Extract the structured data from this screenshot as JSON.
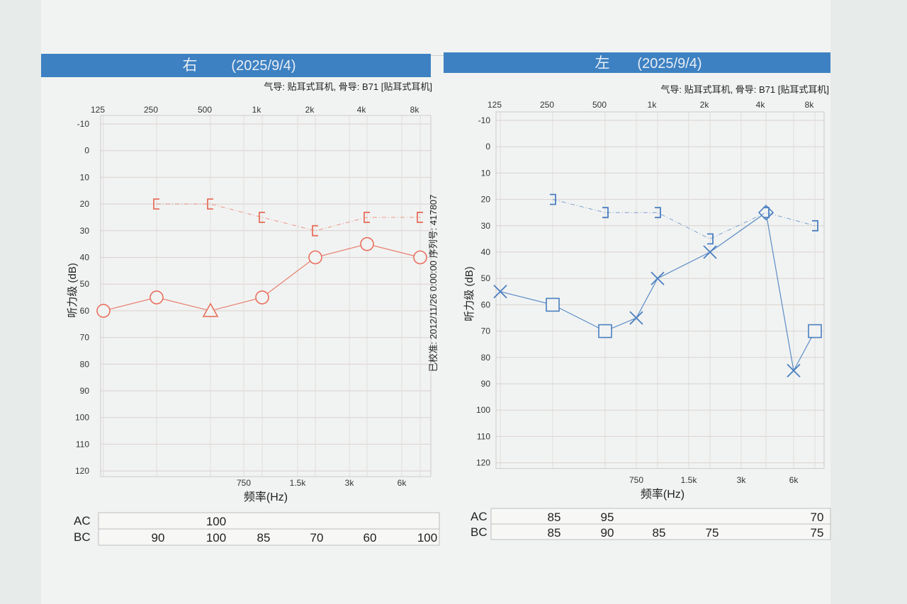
{
  "charts": [
    {
      "header_label": "右",
      "header_date": "(2025/9/4)",
      "transducer": "气导: 贴耳式耳机, 骨导: B71 [贴耳式耳机]",
      "ylabel": "听力级 (dB)",
      "xlabel": "频率(Hz)",
      "color": "#e8705e"
    },
    {
      "header_label": "左",
      "header_date": "(2025/9/4)",
      "transducer": "气导: 贴耳式耳机, 骨导: B71 [贴耳式耳机]",
      "ylabel": "听力级 (dB)",
      "xlabel": "频率(Hz)",
      "color": "#4a7fc0"
    }
  ],
  "calibration_note": "已校准: 2012/11/26 0:00:00 序列号: 417807",
  "chart_data": [
    {
      "type": "line",
      "ear": "右",
      "color": "#e8705e",
      "top_ticks": [
        "125",
        "250",
        "500",
        "1k",
        "2k",
        "4k",
        "8k"
      ],
      "bottom_ticks": [
        "750",
        "1.5k",
        "3k",
        "6k"
      ],
      "y_ticks": [
        -10,
        0,
        10,
        20,
        30,
        40,
        50,
        60,
        70,
        80,
        90,
        100,
        110,
        120
      ],
      "ylim": [
        -10,
        120
      ],
      "y_inverted": true,
      "grid": true,
      "series": [
        {
          "symbol": "circle",
          "points": [
            {
              "x": 125,
              "y": 60,
              "marker": "circle"
            },
            {
              "x": 250,
              "y": 55,
              "marker": "circle"
            },
            {
              "x": 500,
              "y": 60,
              "marker": "triangle"
            },
            {
              "x": 1000,
              "y": 55,
              "marker": "circle"
            },
            {
              "x": 2000,
              "y": 40,
              "marker": "circle"
            },
            {
              "x": 4000,
              "y": 35,
              "marker": "circle"
            },
            {
              "x": 8000,
              "y": 40,
              "marker": "circle"
            }
          ]
        },
        {
          "symbol": "bracket",
          "points": [
            {
              "x": 250,
              "y": 20
            },
            {
              "x": 500,
              "y": 20
            },
            {
              "x": 1000,
              "y": 25
            },
            {
              "x": 2000,
              "y": 30
            },
            {
              "x": 4000,
              "y": 25
            },
            {
              "x": 8000,
              "y": 25
            }
          ]
        }
      ],
      "masking_table": {
        "rows": [
          {
            "label": "AC",
            "cells": [
              "",
              "",
              "100",
              "",
              "",
              "",
              ""
            ]
          },
          {
            "label": "BC",
            "cells": [
              "",
              "90",
              "100",
              "85",
              "70",
              "60",
              "100"
            ]
          }
        ]
      }
    },
    {
      "type": "line",
      "ear": "左",
      "color": "#4a7fc0",
      "top_ticks": [
        "125",
        "250",
        "500",
        "1k",
        "2k",
        "4k",
        "8k"
      ],
      "bottom_ticks": [
        "750",
        "1.5k",
        "3k",
        "6k"
      ],
      "y_ticks": [
        -10,
        0,
        10,
        20,
        30,
        40,
        50,
        60,
        70,
        80,
        90,
        100,
        110,
        120
      ],
      "ylim": [
        -10,
        120
      ],
      "y_inverted": true,
      "grid": true,
      "series": [
        {
          "symbol": "cross",
          "points": [
            {
              "x": 125,
              "y": 55,
              "marker": "cross"
            },
            {
              "x": 250,
              "y": 60,
              "marker": "square"
            },
            {
              "x": 500,
              "y": 70,
              "marker": "square"
            },
            {
              "x": 750,
              "y": 65,
              "marker": "cross"
            },
            {
              "x": 1000,
              "y": 50,
              "marker": "cross"
            },
            {
              "x": 2000,
              "y": 40,
              "marker": "cross"
            },
            {
              "x": 4000,
              "y": 25,
              "marker": "diamond"
            },
            {
              "x": 6000,
              "y": 85,
              "marker": "cross"
            },
            {
              "x": 8000,
              "y": 70,
              "marker": "square"
            }
          ]
        },
        {
          "symbol": "bracket",
          "points": [
            {
              "x": 250,
              "y": 20
            },
            {
              "x": 500,
              "y": 25
            },
            {
              "x": 1000,
              "y": 25
            },
            {
              "x": 2000,
              "y": 35
            },
            {
              "x": 4000,
              "y": 25
            },
            {
              "x": 8000,
              "y": 30
            }
          ]
        }
      ],
      "masking_table": {
        "rows": [
          {
            "label": "AC",
            "cells": [
              "",
              "85",
              "95",
              "",
              "",
              "",
              "70"
            ]
          },
          {
            "label": "BC",
            "cells": [
              "",
              "85",
              "90",
              "85",
              "75",
              "",
              "75"
            ]
          }
        ]
      }
    }
  ]
}
